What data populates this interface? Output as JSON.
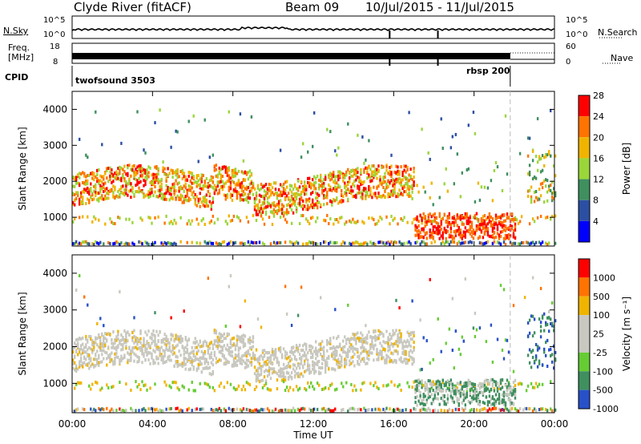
{
  "header": {
    "station": "Clyde River (fitACF)",
    "beam": "Beam 09",
    "date_range": "10/Jul/2015 - 11/Jul/2015"
  },
  "noise_panel": {
    "left_label": "N.Sky",
    "right_label": "N.Search",
    "left_top": "10^5",
    "left_bottom": "10^0",
    "right_top": "10^5",
    "right_bottom": "10^0"
  },
  "freq_panel": {
    "left_label_1": "Freq.",
    "left_label_2": "[MHz]",
    "right_label": "Nave",
    "left_top": "18",
    "left_bottom": "8",
    "right_top": "60",
    "right_bottom": "0"
  },
  "cpid": {
    "label": "CPID",
    "mode_1": "twofsound 3503",
    "mode_2": "rbsp 200"
  },
  "chart_data": [
    {
      "type": "heatmap",
      "title": "",
      "ylabel": "Slant Range [km]",
      "xlabel": "",
      "x_ticks": [
        "00:00",
        "04:00",
        "08:00",
        "12:00",
        "16:00",
        "20:00",
        "00:00"
      ],
      "y_ticks": [
        1000,
        2000,
        3000,
        4000
      ],
      "ylim": [
        200,
        4500
      ],
      "colorbar": {
        "label": "Power [dB]",
        "ticks": [
          "4",
          "8",
          "12",
          "16",
          "20",
          "24",
          "28"
        ],
        "colors": [
          "#0000ff",
          "#2c4fa3",
          "#3f8f5f",
          "#9ad63a",
          "#f0b400",
          "#ff7300",
          "#ff0000"
        ]
      }
    },
    {
      "type": "heatmap",
      "title": "",
      "ylabel": "Slant Range [km]",
      "xlabel": "Time UT",
      "x_ticks": [
        "00:00",
        "04:00",
        "08:00",
        "12:00",
        "16:00",
        "20:00",
        "00:00"
      ],
      "y_ticks": [
        1000,
        2000,
        3000,
        4000
      ],
      "ylim": [
        200,
        4500
      ],
      "colorbar": {
        "label": "Velocity [m s⁻¹]",
        "ticks": [
          "1000",
          "500",
          "100",
          "25",
          "-25",
          "-100",
          "-500",
          "-1000"
        ],
        "colors": [
          "#2850c8",
          "#3f8f5f",
          "#66cc33",
          "#c8c8c0",
          "#c8c8c0",
          "#f0b400",
          "#ff7300",
          "#ff0000"
        ]
      }
    }
  ]
}
